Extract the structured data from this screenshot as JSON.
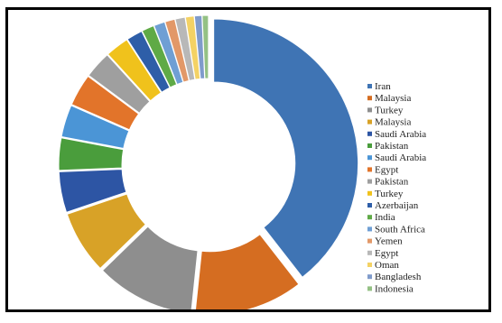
{
  "chart_data": {
    "type": "pie",
    "variant": "donut",
    "title": "",
    "legend_position": "right",
    "slices": [
      {
        "label": "Iran",
        "value": 28.5,
        "color": "#3f74b4"
      },
      {
        "label": "Malaysia",
        "value": 8.8,
        "color": "#d56d21"
      },
      {
        "label": "Turkey",
        "value": 8.0,
        "color": "#8e8e8e"
      },
      {
        "label": "Malaysia",
        "value": 5.1,
        "color": "#d8a227"
      },
      {
        "label": "Saudi Arabia",
        "value": 3.3,
        "color": "#2d55a4"
      },
      {
        "label": "Pakistan",
        "value": 2.6,
        "color": "#4a9d3c"
      },
      {
        "label": "Saudi Arabia",
        "value": 2.6,
        "color": "#4b95d6"
      },
      {
        "label": "Egypt",
        "value": 2.6,
        "color": "#e2742a"
      },
      {
        "label": "Pakistan",
        "value": 2.2,
        "color": "#9f9f9f"
      },
      {
        "label": "Turkey",
        "value": 1.9,
        "color": "#f0c21c"
      },
      {
        "label": "Azerbaijan",
        "value": 1.3,
        "color": "#2e5ea8"
      },
      {
        "label": "India",
        "value": 1.0,
        "color": "#5faa46"
      },
      {
        "label": "South Africa",
        "value": 0.9,
        "color": "#6f9fd4"
      },
      {
        "label": "Yemen",
        "value": 0.8,
        "color": "#e29868"
      },
      {
        "label": "Egypt",
        "value": 0.8,
        "color": "#b8b8b8"
      },
      {
        "label": "Oman",
        "value": 0.7,
        "color": "#f4d264"
      },
      {
        "label": "Bangladesh",
        "value": 0.6,
        "color": "#7f9bcb"
      },
      {
        "label": "Indonesia",
        "value": 0.5,
        "color": "#94c184"
      }
    ]
  }
}
